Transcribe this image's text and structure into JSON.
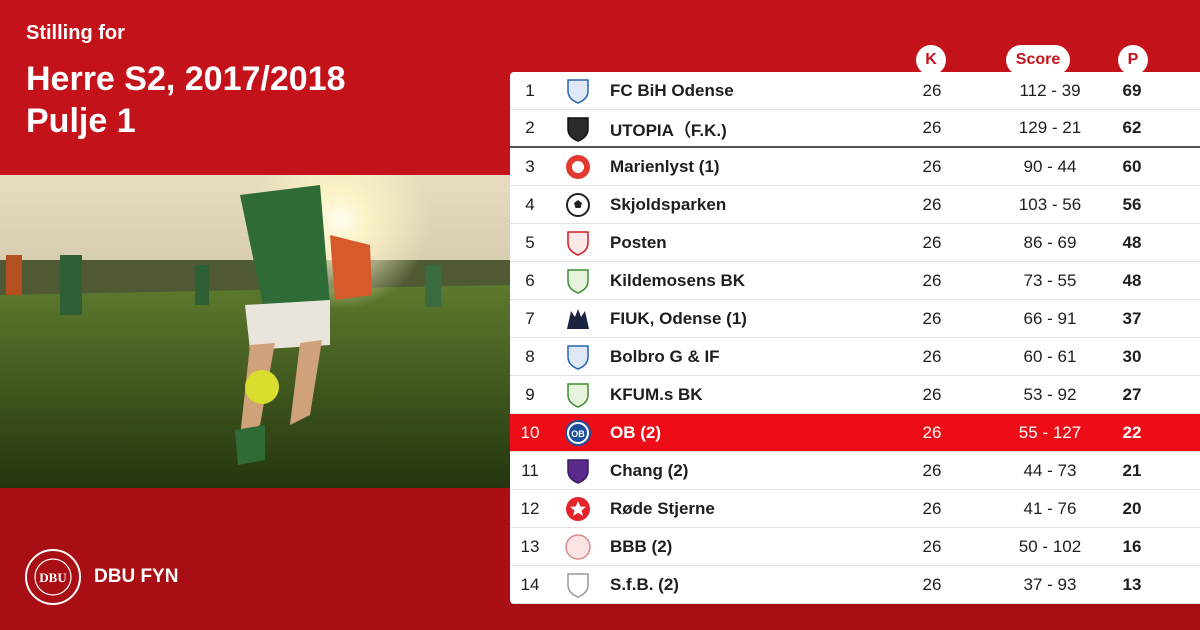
{
  "heading": {
    "subtitle": "Stilling for",
    "title_line1": "Herre S2, 2017/2018",
    "title_line2": "Pulje 1"
  },
  "brand": {
    "name": "DBU FYN",
    "seal_text": "DBU"
  },
  "columns": {
    "games": "K",
    "score": "Score",
    "points": "P"
  },
  "colors": {
    "primary": "#c4121a",
    "dark": "#a80e13",
    "highlight": "#ee0c16"
  },
  "rows": [
    {
      "pos": "1",
      "team": "FC BiH Odense",
      "games": "26",
      "score": "112 - 39",
      "points": "69",
      "crest": "shield-blue-icon"
    },
    {
      "pos": "2",
      "team": "UTOPIA（F.K.)",
      "games": "26",
      "score": "129 - 21",
      "points": "62",
      "crest": "shield-black-icon"
    },
    {
      "pos": "3",
      "team": "Marienlyst (1)",
      "games": "26",
      "score": "90 - 44",
      "points": "60",
      "crest": "badge-red-icon"
    },
    {
      "pos": "4",
      "team": "Skjoldsparken",
      "games": "26",
      "score": "103 - 56",
      "points": "56",
      "crest": "soccer-ball-icon"
    },
    {
      "pos": "5",
      "team": "Posten",
      "games": "26",
      "score": "86 - 69",
      "points": "48",
      "crest": "shield-red-icon"
    },
    {
      "pos": "6",
      "team": "Kildemosens BK",
      "games": "26",
      "score": "73 - 55",
      "points": "48",
      "crest": "shield-green-icon"
    },
    {
      "pos": "7",
      "team": "FIUK, Odense (1)",
      "games": "26",
      "score": "66 - 91",
      "points": "37",
      "crest": "wolf-icon"
    },
    {
      "pos": "8",
      "team": "Bolbro G & IF",
      "games": "26",
      "score": "60 - 61",
      "points": "30",
      "crest": "shield-blue-icon"
    },
    {
      "pos": "9",
      "team": "KFUM.s BK",
      "games": "26",
      "score": "53 - 92",
      "points": "27",
      "crest": "shield-green-icon"
    },
    {
      "pos": "10",
      "team": "OB (2)",
      "games": "26",
      "score": "55 - 127",
      "points": "22",
      "crest": "ob-circle-icon"
    },
    {
      "pos": "11",
      "team": "Chang  (2)",
      "games": "26",
      "score": "44 - 73",
      "points": "21",
      "crest": "shield-purple-icon"
    },
    {
      "pos": "12",
      "team": "Røde Stjerne",
      "games": "26",
      "score": "41 - 76",
      "points": "20",
      "crest": "red-star-icon"
    },
    {
      "pos": "13",
      "team": "BBB (2)",
      "games": "26",
      "score": "50 - 102",
      "points": "16",
      "crest": "badge-pink-icon"
    },
    {
      "pos": "14",
      "team": "S.f.B. (2)",
      "games": "26",
      "score": "37 - 93",
      "points": "13",
      "crest": "shield-outline-icon"
    }
  ]
}
